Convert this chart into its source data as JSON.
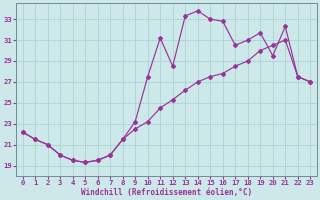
{
  "xlabel": "Windchill (Refroidissement éolien,°C)",
  "background_color": "#cce8e8",
  "grid_color": "#aad4d4",
  "line_color": "#993399",
  "xlim": [
    -0.5,
    23.5
  ],
  "ylim": [
    18.0,
    34.5
  ],
  "xticks": [
    0,
    1,
    2,
    3,
    4,
    5,
    6,
    7,
    8,
    9,
    10,
    11,
    12,
    13,
    14,
    15,
    16,
    17,
    18,
    19,
    20,
    21,
    22,
    23
  ],
  "yticks": [
    19,
    21,
    23,
    25,
    27,
    29,
    31,
    33
  ],
  "series1_x": [
    0,
    1,
    2,
    3,
    4,
    5,
    6,
    7,
    8,
    9,
    10,
    11,
    12,
    13,
    14,
    15,
    16,
    17,
    18,
    19,
    20,
    21,
    22,
    23
  ],
  "series1_y": [
    22.2,
    21.5,
    21.0,
    20.0,
    19.5,
    19.3,
    19.5,
    20.0,
    21.5,
    23.2,
    27.5,
    31.2,
    28.5,
    33.3,
    33.8,
    33.0,
    32.8,
    30.5,
    31.0,
    31.7,
    29.5,
    32.3,
    27.5,
    27.0
  ],
  "series2_x": [
    0,
    1,
    2,
    3,
    4,
    5,
    6,
    7,
    8,
    9,
    10,
    11,
    12,
    13,
    14,
    15,
    16,
    17,
    18,
    19,
    20,
    21,
    22,
    23
  ],
  "series2_y": [
    22.2,
    21.5,
    21.0,
    20.0,
    19.5,
    19.3,
    19.5,
    20.0,
    21.5,
    22.5,
    23.2,
    24.5,
    25.3,
    26.2,
    27.0,
    27.5,
    27.8,
    28.5,
    29.0,
    30.0,
    30.5,
    31.0,
    27.5,
    27.0
  ],
  "figwidth": 3.2,
  "figheight": 2.0,
  "dpi": 100
}
